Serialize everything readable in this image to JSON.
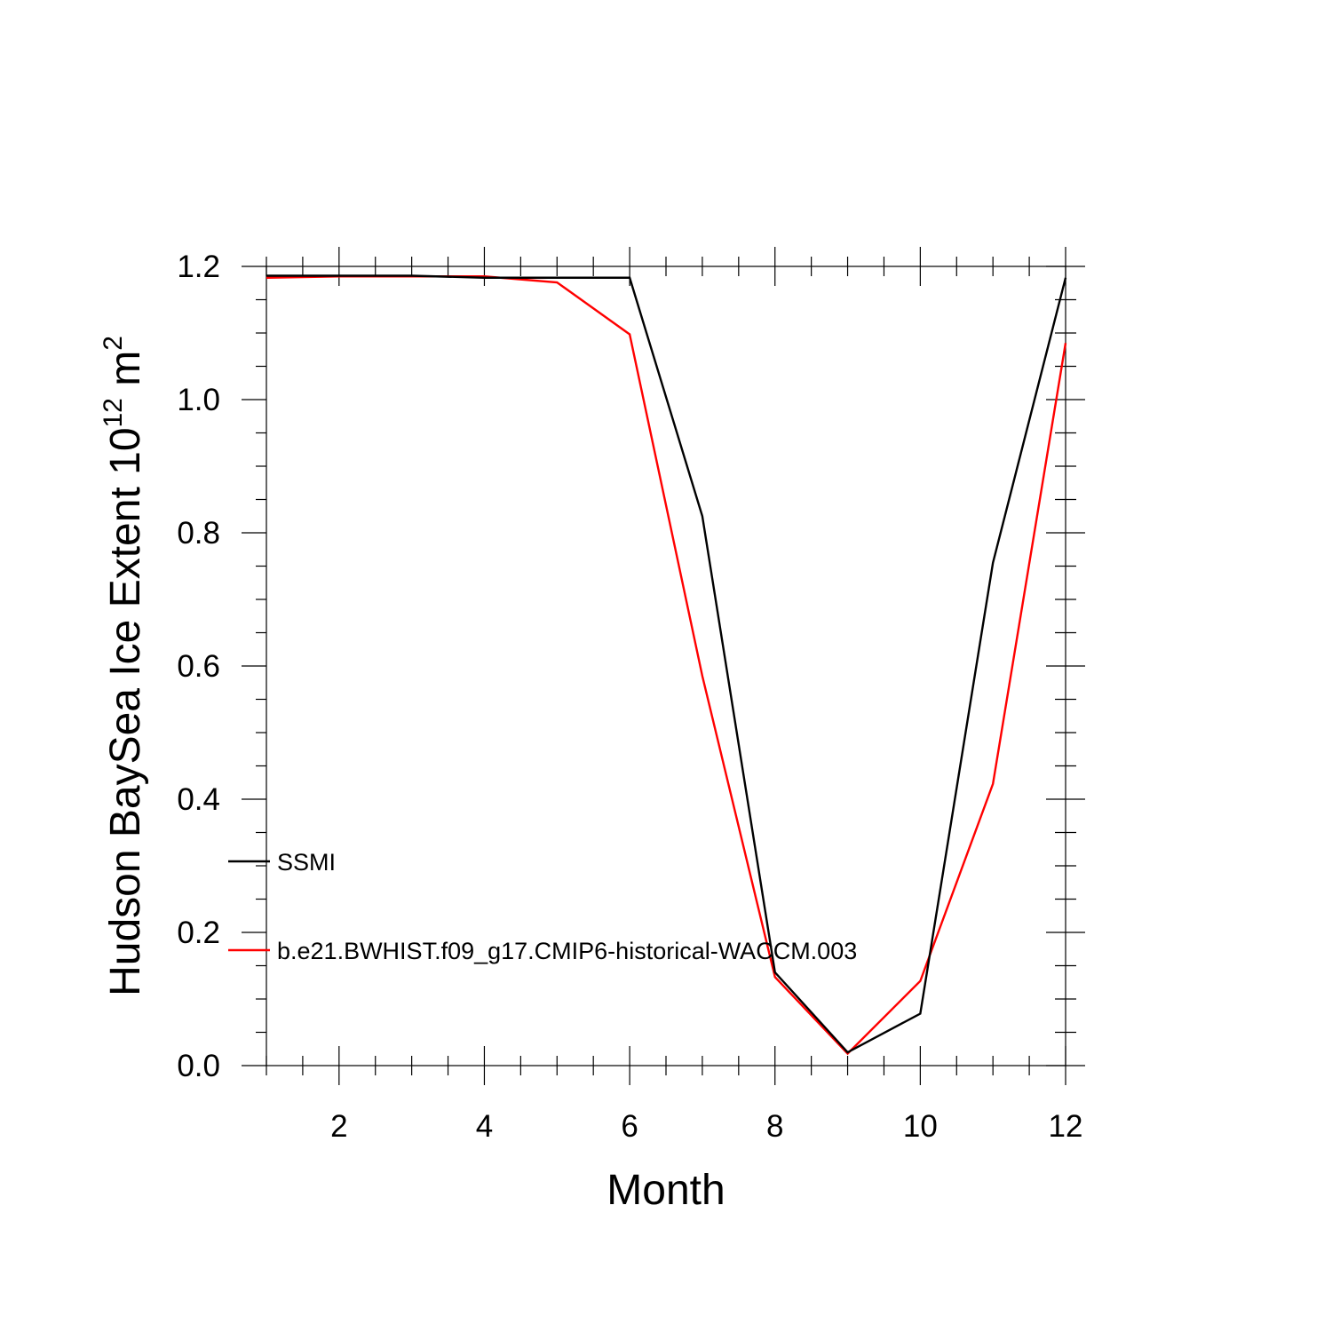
{
  "chart_data": {
    "type": "line",
    "title": "",
    "xlabel": "Month",
    "ylabel": {
      "prefix": "Hudson BaySea Ice Extent 10",
      "exponent": "12",
      "unit": " m",
      "unit_exponent": "2"
    },
    "xlim": [
      1,
      12
    ],
    "ylim": [
      0,
      1.2
    ],
    "x_major_ticks": [
      2,
      4,
      6,
      8,
      10,
      12
    ],
    "x_minor_step": 0.5,
    "y_major_ticks": [
      0.0,
      0.2,
      0.4,
      0.6,
      0.8,
      1.0,
      1.2
    ],
    "y_tick_labels": [
      "0.0",
      "0.2",
      "0.4",
      "0.6",
      "0.8",
      "1.0",
      "1.2"
    ],
    "y_minor_step": 0.05,
    "grid": false,
    "legend_placement": "left-middle",
    "x": [
      1,
      2,
      3,
      4,
      5,
      6,
      7,
      8,
      9,
      10,
      11,
      12
    ],
    "series": [
      {
        "name": "SSMI",
        "color": "#000000",
        "values": [
          1.186,
          1.186,
          1.186,
          1.183,
          1.183,
          1.183,
          0.825,
          0.14,
          0.02,
          0.078,
          0.755,
          1.183
        ]
      },
      {
        "name": "b.e21.BWHIST.f09_g17.CMIP6-historical-WACCM.003",
        "color": "#ff0000",
        "values": [
          1.183,
          1.185,
          1.185,
          1.185,
          1.176,
          1.098,
          0.585,
          0.133,
          0.018,
          0.127,
          0.423,
          1.085
        ]
      }
    ]
  }
}
